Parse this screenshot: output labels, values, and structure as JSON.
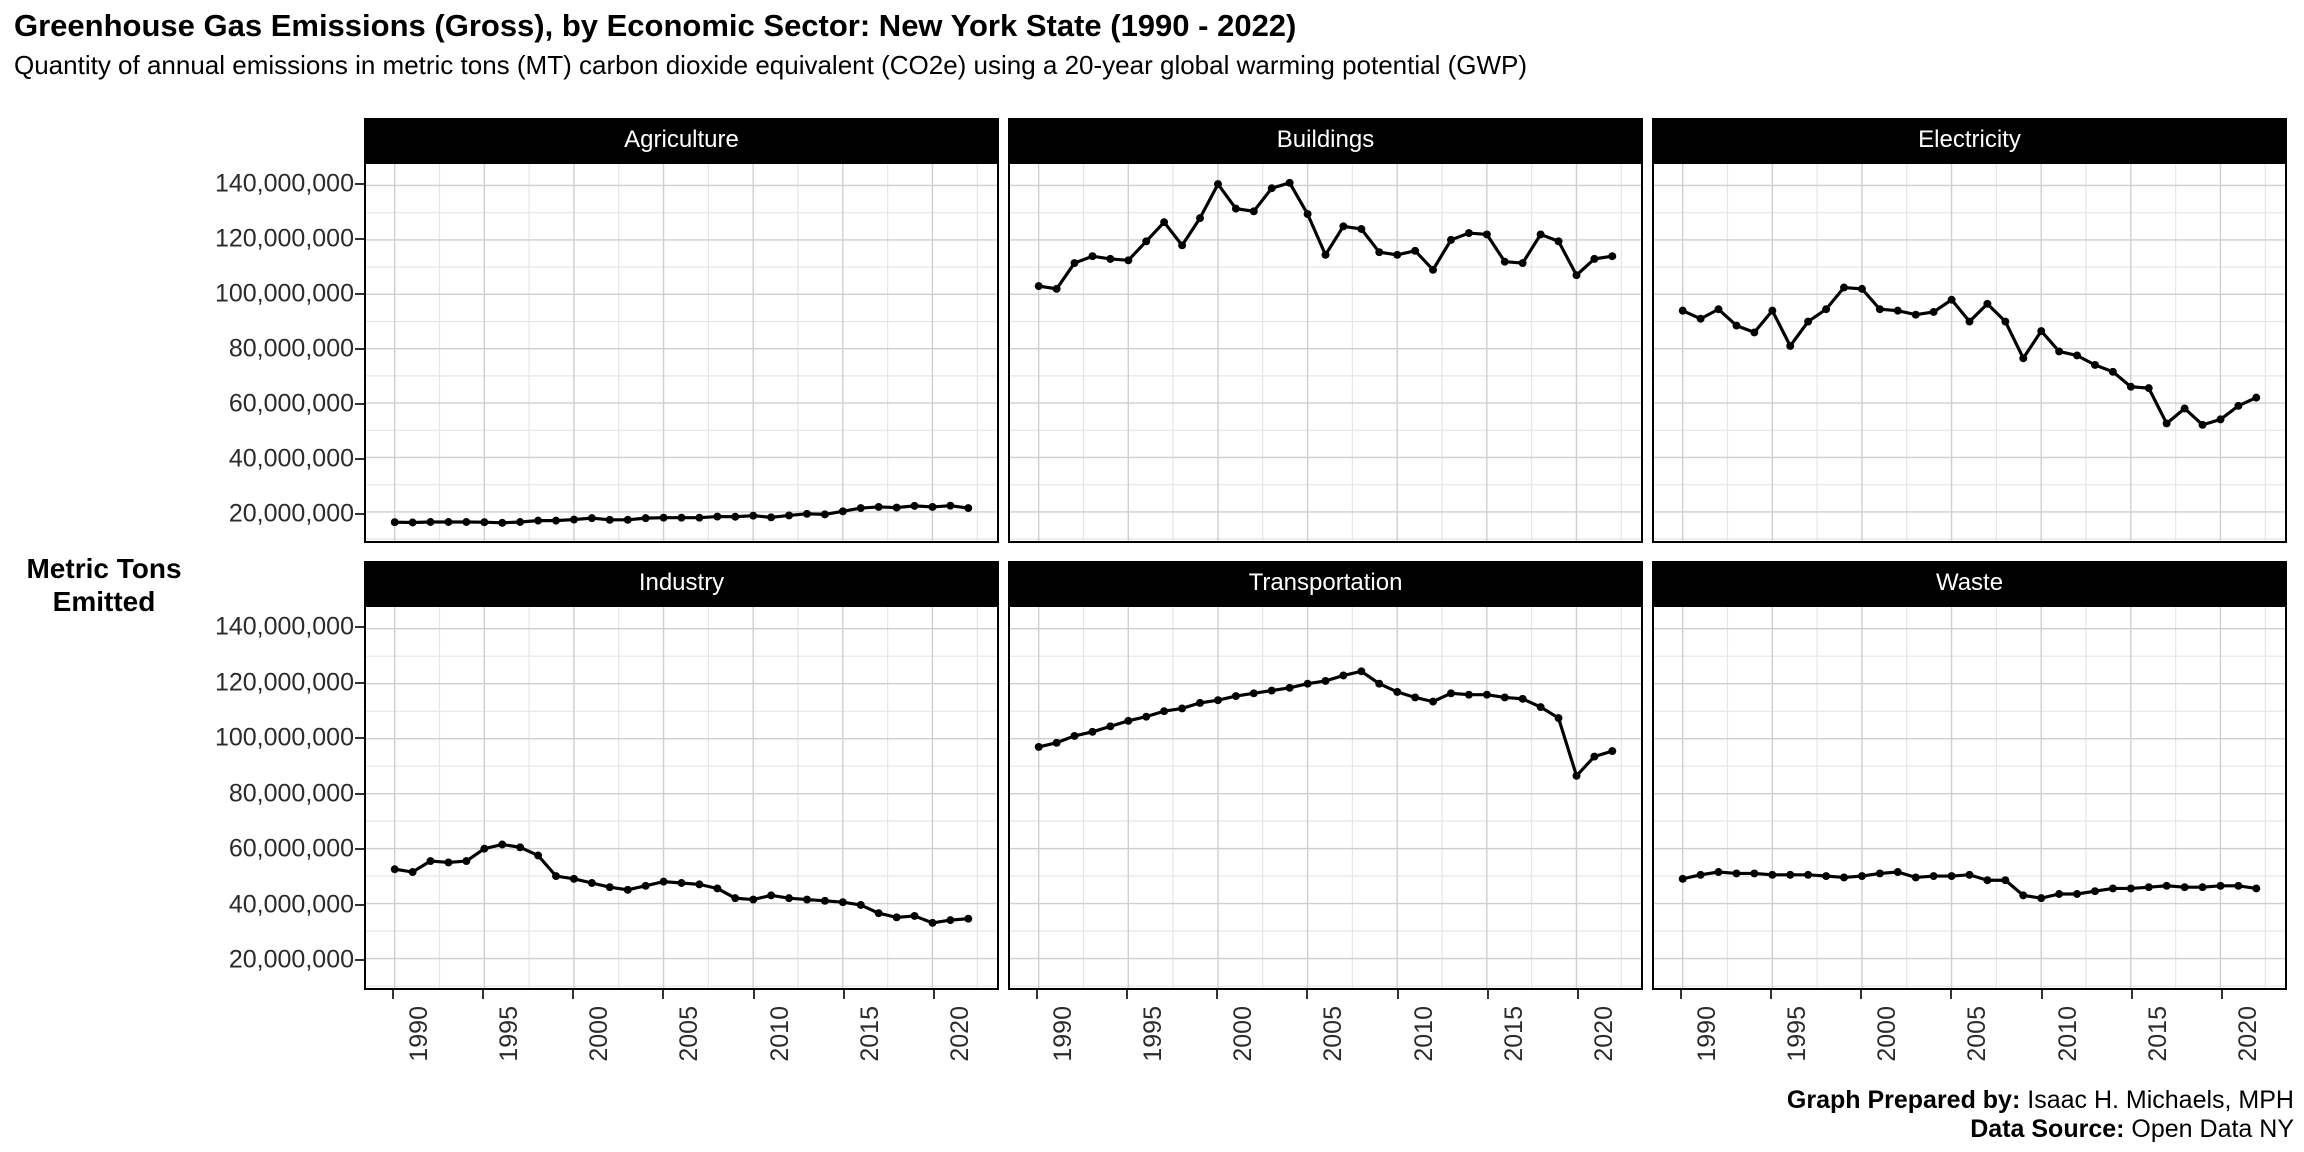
{
  "title": "Greenhouse Gas Emissions (Gross), by Economic Sector: New York State (1990 - 2022)",
  "subtitle": "Quantity of annual emissions in metric tons (MT) carbon dioxide equivalent (CO2e) using a 20-year global warming potential (GWP)",
  "y_axis_title": {
    "line1": "Metric Tons",
    "line2": "Emitted"
  },
  "caption": {
    "prepared_by_label": "Graph Prepared by:",
    "prepared_by_value": "Isaac H. Michaels, MPH",
    "source_label": "Data Source:",
    "source_value": "Open Data NY"
  },
  "chart_data": {
    "type": "line",
    "facets": [
      "Agriculture",
      "Buildings",
      "Electricity",
      "Industry",
      "Transportation",
      "Waste"
    ],
    "x_label": "",
    "y_label": "Metric Tons Emitted",
    "x": [
      1990,
      1991,
      1992,
      1993,
      1994,
      1995,
      1996,
      1997,
      1998,
      1999,
      2000,
      2001,
      2002,
      2003,
      2004,
      2005,
      2006,
      2007,
      2008,
      2009,
      2010,
      2011,
      2012,
      2013,
      2014,
      2015,
      2016,
      2017,
      2018,
      2019,
      2020,
      2021,
      2022
    ],
    "x_ticks": [
      1990,
      1995,
      2000,
      2005,
      2010,
      2015,
      2020
    ],
    "x_minor_ticks": [
      1992.5,
      1997.5,
      2002.5,
      2007.5,
      2012.5,
      2017.5,
      2022.5
    ],
    "x_range": [
      1988.4,
      2023.6
    ],
    "y_ticks": [
      {
        "value": 140000000,
        "label": "140,000,000"
      },
      {
        "value": 120000000,
        "label": "120,000,000"
      },
      {
        "value": 100000000,
        "label": "100,000,000"
      },
      {
        "value": 80000000,
        "label": "80,000,000"
      },
      {
        "value": 60000000,
        "label": "60,000,000"
      },
      {
        "value": 40000000,
        "label": "40,000,000"
      },
      {
        "value": 20000000,
        "label": "20,000,000"
      }
    ],
    "y_minor_ticks": [
      10000000,
      30000000,
      50000000,
      70000000,
      90000000,
      110000000,
      130000000
    ],
    "y_range": [
      9300000,
      147900000
    ],
    "grid": true,
    "legend_position": "none",
    "line_color": "#000000",
    "major_grid_color": "#cfcfcf",
    "minor_grid_color": "#e6e6e6",
    "series": [
      {
        "name": "Agriculture",
        "values": [
          16200000,
          16100000,
          16300000,
          16300000,
          16300000,
          16200000,
          16000000,
          16300000,
          16800000,
          16800000,
          17200000,
          17700000,
          17100000,
          17100000,
          17700000,
          17900000,
          17900000,
          17900000,
          18300000,
          18200000,
          18600000,
          18000000,
          18700000,
          19300000,
          19100000,
          20200000,
          21400000,
          21800000,
          21600000,
          22200000,
          21800000,
          22300000,
          21400000
        ]
      },
      {
        "name": "Buildings",
        "values": [
          103000000,
          102000000,
          111500000,
          114000000,
          113000000,
          112500000,
          119500000,
          126500000,
          118000000,
          128000000,
          140500000,
          131500000,
          130500000,
          139000000,
          141000000,
          129500000,
          114500000,
          125000000,
          124000000,
          115500000,
          114500000,
          116000000,
          109000000,
          120000000,
          122500000,
          122000000,
          112000000,
          111500000,
          122000000,
          119500000,
          107000000,
          113000000,
          114000000
        ]
      },
      {
        "name": "Electricity",
        "values": [
          94000000,
          91000000,
          94500000,
          88500000,
          86000000,
          94000000,
          81000000,
          90000000,
          94500000,
          102500000,
          102000000,
          94500000,
          94000000,
          92500000,
          93500000,
          98000000,
          90000000,
          96500000,
          90000000,
          76500000,
          86500000,
          79000000,
          77500000,
          74000000,
          71500000,
          66000000,
          65500000,
          52500000,
          58000000,
          52000000,
          54000000,
          59000000,
          62000000
        ]
      },
      {
        "name": "Industry",
        "values": [
          52500000,
          51500000,
          55500000,
          55000000,
          55500000,
          60000000,
          61500000,
          60500000,
          57500000,
          50000000,
          49000000,
          47500000,
          46000000,
          45000000,
          46500000,
          48000000,
          47500000,
          47000000,
          45500000,
          42000000,
          41500000,
          43000000,
          42000000,
          41500000,
          41000000,
          40500000,
          39500000,
          36500000,
          35000000,
          35500000,
          33000000,
          34000000,
          34500000
        ]
      },
      {
        "name": "Transportation",
        "values": [
          97000000,
          98500000,
          101000000,
          102500000,
          104500000,
          106500000,
          108000000,
          110000000,
          111000000,
          113000000,
          114000000,
          115500000,
          116500000,
          117500000,
          118500000,
          120000000,
          121000000,
          123000000,
          124500000,
          120000000,
          117000000,
          115000000,
          113500000,
          116500000,
          116000000,
          116000000,
          115000000,
          114500000,
          111500000,
          107500000,
          86500000,
          93500000,
          95500000
        ]
      },
      {
        "name": "Waste",
        "values": [
          49000000,
          50500000,
          51500000,
          51000000,
          51000000,
          50500000,
          50500000,
          50500000,
          50000000,
          49500000,
          50000000,
          51000000,
          51500000,
          49500000,
          50000000,
          50000000,
          50500000,
          48500000,
          48500000,
          43000000,
          42000000,
          43500000,
          43500000,
          44500000,
          45500000,
          45500000,
          46000000,
          46500000,
          46000000,
          46000000,
          46500000,
          46500000,
          45500000
        ]
      }
    ]
  }
}
